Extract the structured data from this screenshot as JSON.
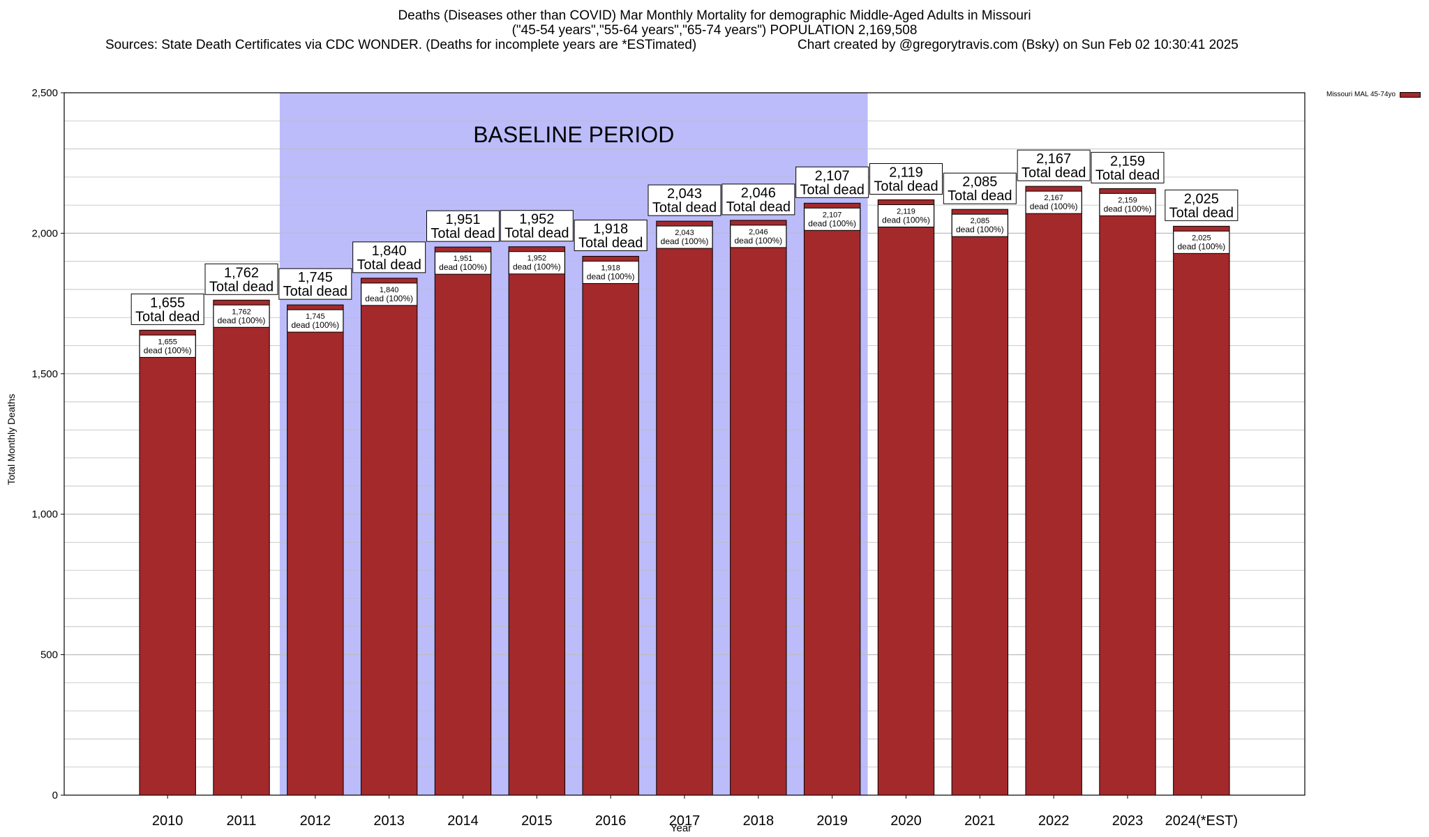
{
  "title": {
    "line1": "Deaths (Diseases other than COVID) Mar Monthly Mortality for demographic Middle-Aged Adults in Missouri",
    "line2": "(\"45-54 years\",\"55-64 years\",\"65-74 years\") POPULATION 2,169,508",
    "sources": "Sources: State Death Certificates via CDC WONDER. (Deaths for incomplete years are *ESTimated)",
    "credit": "Chart created by @gregorytravis.com (Bsky) on Sun Feb 02 10:30:41 2025"
  },
  "legend": {
    "label": "Missouri MAL 45-74yo"
  },
  "colors": {
    "bar": "#a3292b",
    "baseline": "#bcbcfb",
    "grid": "#bdbdbd"
  },
  "chart_data": {
    "type": "bar",
    "title": "Deaths (Diseases other than COVID) Mar Monthly Mortality for demographic Middle-Aged Adults in Missouri",
    "xlabel": "Year",
    "ylabel": "Total Monthly Deaths",
    "ylim": [
      0,
      2500
    ],
    "yticks": [
      0,
      500,
      1000,
      1500,
      2000,
      2500
    ],
    "ytick_labels": [
      "0",
      "500",
      "1,000",
      "1,500",
      "2,000",
      "2,500"
    ],
    "categories": [
      "2010",
      "2011",
      "2012",
      "2013",
      "2014",
      "2015",
      "2016",
      "2017",
      "2018",
      "2019",
      "2020",
      "2021",
      "2022",
      "2023",
      "2024(*EST)"
    ],
    "values": [
      1655,
      1762,
      1745,
      1840,
      1951,
      1952,
      1918,
      2043,
      2046,
      2107,
      2119,
      2085,
      2167,
      2159,
      2025
    ],
    "value_labels": [
      "1,655",
      "1,762",
      "1,745",
      "1,840",
      "1,951",
      "1,952",
      "1,918",
      "2,043",
      "2,046",
      "2,107",
      "2,119",
      "2,085",
      "2,167",
      "2,159",
      "2,025"
    ],
    "total_caption": "Total dead",
    "share_caption": "dead (100%)",
    "baseline": {
      "label": "BASELINE PERIOD",
      "start": "2012",
      "end": "2019"
    },
    "legend": "Missouri MAL 45-74yo",
    "grid": true
  }
}
